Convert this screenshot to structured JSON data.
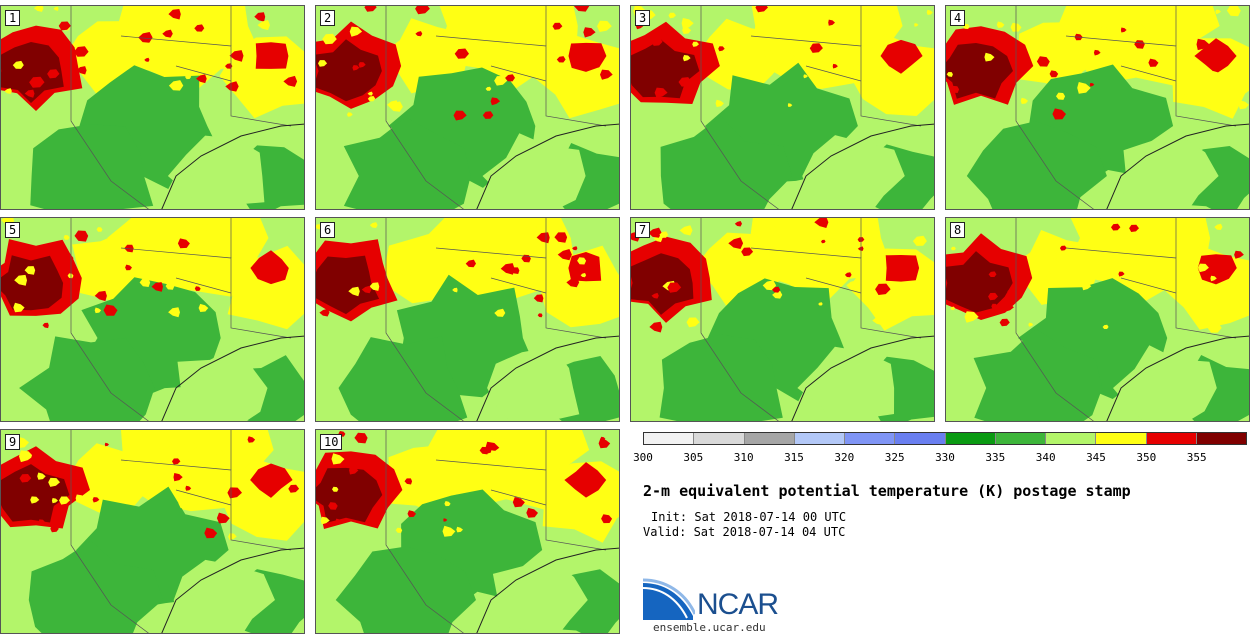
{
  "panels": [
    {
      "label": "1"
    },
    {
      "label": "2"
    },
    {
      "label": "3"
    },
    {
      "label": "4"
    },
    {
      "label": "5"
    },
    {
      "label": "6"
    },
    {
      "label": "7"
    },
    {
      "label": "8"
    },
    {
      "label": "9"
    },
    {
      "label": "10"
    }
  ],
  "colorbar": {
    "colors": [
      "#f2f2f2",
      "#d9d9d9",
      "#a6a6a6",
      "#b3c8f7",
      "#8095f5",
      "#6a7ff0",
      "#0a9a12",
      "#3db53a",
      "#b3f56a",
      "#ffff14",
      "#e60000",
      "#800000"
    ],
    "ticks": [
      "300",
      "305",
      "310",
      "315",
      "320",
      "325",
      "330",
      "335",
      "340",
      "345",
      "350",
      "355"
    ]
  },
  "title": "2-m equivalent potential temperature (K) postage stamp",
  "init": "Init: Sat 2018-07-14 00 UTC",
  "valid": "Valid: Sat 2018-07-14 04 UTC",
  "logo": {
    "text": "NCAR",
    "site": "ensemble.ucar.edu",
    "icon": "ncar-logo-icon"
  },
  "map_colors": {
    "land_light": "#b3f56a",
    "land_green": "#3db53a",
    "hot": "#ffff14",
    "red": "#e60000",
    "darkred": "#800000",
    "water": "#b3f56a"
  }
}
